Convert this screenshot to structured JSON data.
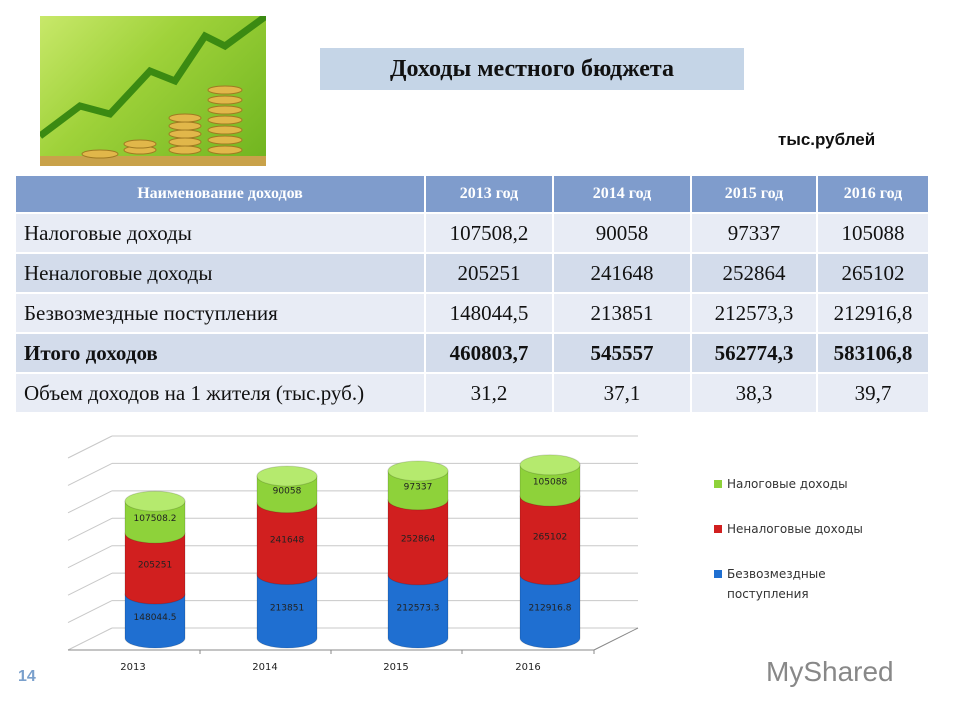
{
  "title": "Доходы  местного бюджета",
  "units": "тыс.рублей",
  "table": {
    "headers": [
      "Наименование доходов",
      "2013 год",
      "2014 год",
      "2015 год",
      "2016 год"
    ],
    "rows": [
      {
        "name": "Налоговые доходы",
        "values": [
          "107508,2",
          "90058",
          "97337",
          "105088"
        ],
        "bold": false
      },
      {
        "name": "Неналоговые доходы",
        "values": [
          "205251",
          "241648",
          "252864",
          "265102"
        ],
        "bold": false
      },
      {
        "name": "Безвозмездные поступления",
        "values": [
          "148044,5",
          "213851",
          "212573,3",
          "212916,8"
        ],
        "bold": false
      },
      {
        "name": "Итого доходов",
        "values": [
          "460803,7",
          "545557",
          "562774,3",
          "583106,8"
        ],
        "bold": true
      },
      {
        "name": "Объем доходов на 1 жителя (тыс.руб.)",
        "values": [
          "31,2",
          "37,1",
          "38,3",
          "39,7"
        ],
        "bold": false
      }
    ]
  },
  "chart_data": {
    "type": "bar",
    "stacked": true,
    "categories": [
      "2013",
      "2014",
      "2015",
      "2016"
    ],
    "series": [
      {
        "name": "Безвозмездные поступления",
        "values": [
          148044.5,
          213851,
          212573.3,
          212916.8
        ],
        "labels": [
          "148044.5",
          "213851",
          "212573.3",
          "212916.8"
        ],
        "color": "#1f6fd1"
      },
      {
        "name": "Неналоговые доходы",
        "values": [
          205251,
          241648,
          252864,
          265102
        ],
        "labels": [
          "205251",
          "241648",
          "252864",
          "265102"
        ],
        "color": "#d11f1f"
      },
      {
        "name": "Налоговые доходы",
        "values": [
          107508.2,
          90058,
          97337,
          105088
        ],
        "labels": [
          "107508.2",
          "90058",
          "97337",
          "105088"
        ],
        "color": "#8ed23a"
      }
    ],
    "legend_order": [
      "Налоговые доходы",
      "Неналоговые доходы",
      "Безвозмездные поступления"
    ],
    "legend_position": "right",
    "grid": true
  },
  "page_number": "14",
  "watermark": "MyShared"
}
